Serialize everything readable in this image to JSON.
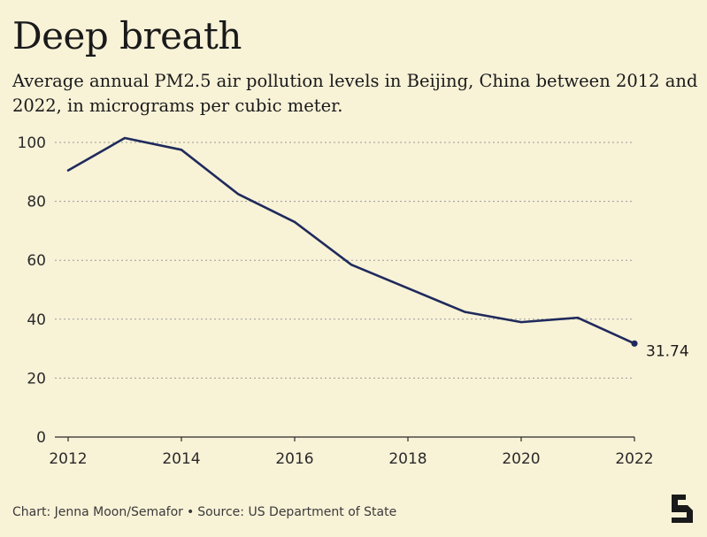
{
  "header": {
    "title": "Deep breath",
    "subtitle": "Average annual PM2.5 air pollution levels in Beijing, China between 2012 and 2022, in micrograms per cubic meter."
  },
  "footer": {
    "credit": "Chart: Jenna Moon/Semafor",
    "separator": "•",
    "source": "Source: US Department of State"
  },
  "logo": {
    "icon": "semafor-s-logo-icon"
  },
  "colors": {
    "background": "#f8f2d7",
    "line": "#1f2a5c",
    "grid": "#9a9a9a",
    "text": "#1a1a1a"
  },
  "chart_data": {
    "type": "line",
    "title": "Deep breath",
    "subtitle": "Average annual PM2.5 air pollution levels in Beijing, China between 2012 and 2022, in micrograms per cubic meter.",
    "xlabel": "",
    "ylabel": "",
    "x": [
      2012,
      2013,
      2014,
      2015,
      2016,
      2017,
      2018,
      2019,
      2020,
      2021,
      2022
    ],
    "values": [
      90.5,
      101.5,
      97.5,
      82.5,
      73,
      58.5,
      50.5,
      42.5,
      39,
      40.5,
      31.74
    ],
    "ylim": [
      0,
      100
    ],
    "xlim": [
      2012,
      2022
    ],
    "y_ticks": [
      0,
      20,
      40,
      60,
      80,
      100
    ],
    "x_ticks": [
      2012,
      2014,
      2016,
      2018,
      2020,
      2022
    ],
    "grid": true,
    "grid_style": "dotted horizontal",
    "end_label": "31.74",
    "legend": "none"
  }
}
